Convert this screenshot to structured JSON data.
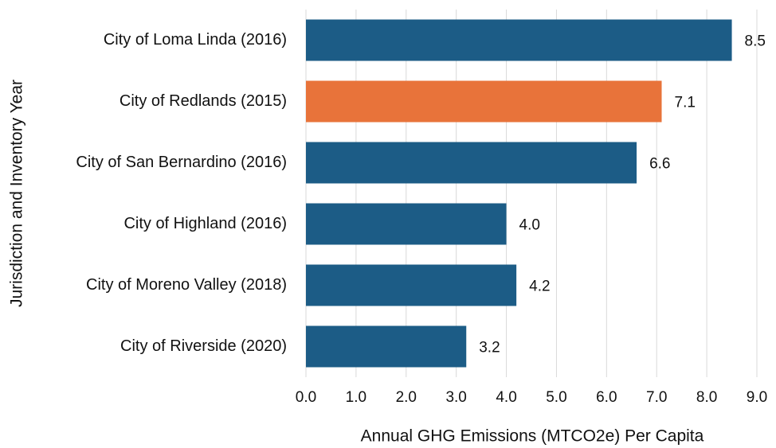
{
  "chart_data": {
    "type": "barh",
    "xlabel": "Annual GHG Emissions (MTCO2e) Per Capita",
    "ylabel": "Jurisdiction and Inventory Year",
    "categories": [
      "City of Loma Linda (2016)",
      "City of Redlands (2015)",
      "City of San Bernardino (2016)",
      "City of Highland (2016)",
      "City of Moreno Valley (2018)",
      "City of Riverside (2020)"
    ],
    "values": [
      8.5,
      7.1,
      6.6,
      4.0,
      4.2,
      3.2
    ],
    "value_labels": [
      "8.5",
      "7.1",
      "6.6",
      "4.0",
      "4.2",
      "3.2"
    ],
    "colors": [
      "#1c5c86",
      "#e8733a",
      "#1c5c86",
      "#1c5c86",
      "#1c5c86",
      "#1c5c86"
    ],
    "xlim": [
      0,
      9
    ],
    "xticks": [
      {
        "value": 0,
        "label": "0.0"
      },
      {
        "value": 1,
        "label": "1.0"
      },
      {
        "value": 2,
        "label": "2.0"
      },
      {
        "value": 3,
        "label": "3.0"
      },
      {
        "value": 4,
        "label": "4.0"
      },
      {
        "value": 5,
        "label": "5.0"
      },
      {
        "value": 6,
        "label": "6.0"
      },
      {
        "value": 7,
        "label": "7.0"
      },
      {
        "value": 8,
        "label": "8.0"
      },
      {
        "value": 9,
        "label": "9.0"
      }
    ],
    "grid": true
  }
}
